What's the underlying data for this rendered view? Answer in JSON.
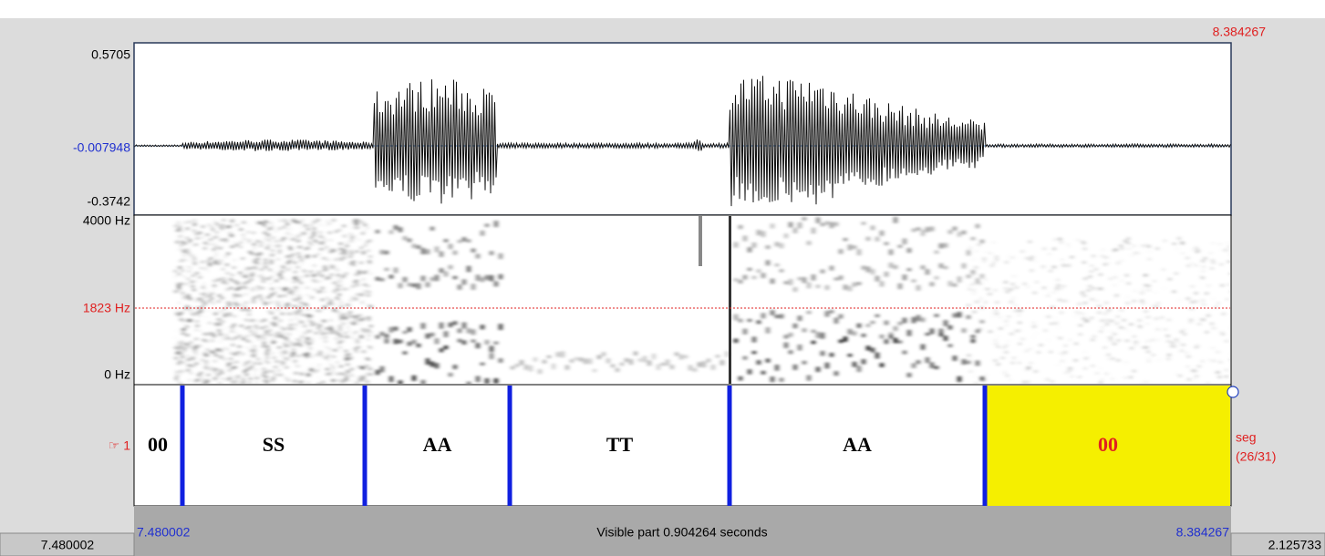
{
  "time_marker": "8.384267",
  "waveform": {
    "max": "0.5705",
    "cursor": "-0.007948",
    "min": "-0.3742"
  },
  "spectrogram": {
    "top": "4000 Hz",
    "cursor": "1823 Hz",
    "bottom": "0 Hz"
  },
  "tier": {
    "name": "☞ 1",
    "intervals": [
      "00",
      "SS",
      "AA",
      "TT",
      "AA",
      "00"
    ],
    "info": [
      "seg",
      "(26/31)"
    ]
  },
  "footer": {
    "left_total": "7.480002",
    "start": "7.480002",
    "visible": "Visible part 0.904264 seconds",
    "end": "8.384267",
    "right_total": "2.125733"
  }
}
